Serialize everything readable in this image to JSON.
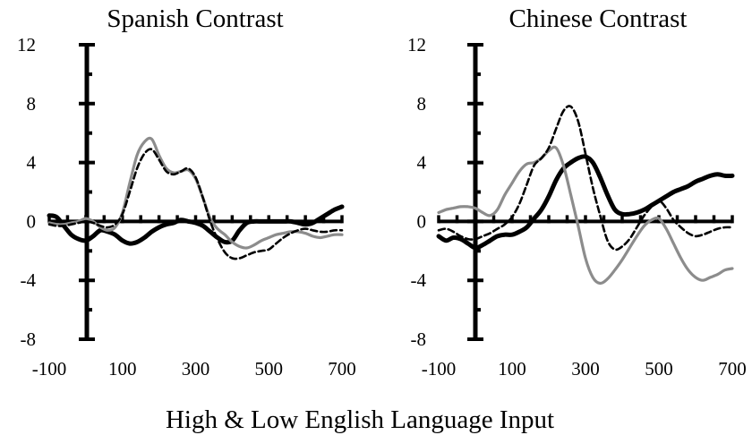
{
  "figure": {
    "xlabel": "High & Low English Language Input"
  },
  "chart_data": [
    {
      "type": "line",
      "title": "Spanish Contrast",
      "xlabel": "High & Low English Language Input",
      "ylabel": "",
      "xlim": [
        -100,
        700
      ],
      "ylim": [
        -8,
        12
      ],
      "x_ticks": [
        "-100",
        "100",
        "300",
        "500",
        "700"
      ],
      "y_ticks": [
        "12",
        "8",
        "4",
        "0",
        "-4",
        "-8"
      ],
      "grid": false,
      "legend": "none",
      "series": [
        {
          "style": "solid-black-thick",
          "color": "#000000",
          "x": [
            -100,
            -80,
            -60,
            -40,
            -20,
            0,
            20,
            40,
            60,
            80,
            100,
            120,
            140,
            160,
            180,
            200,
            220,
            240,
            260,
            280,
            300,
            320,
            340,
            360,
            380,
            400,
            420,
            440,
            460,
            480,
            500,
            520,
            540,
            560,
            580,
            600,
            620,
            640,
            660,
            680,
            700
          ],
          "y": [
            0.4,
            0.3,
            -0.3,
            -0.9,
            -1.2,
            -1.3,
            -1.0,
            -0.6,
            -0.7,
            -0.9,
            -1.3,
            -1.5,
            -1.4,
            -1.1,
            -0.7,
            -0.4,
            -0.2,
            -0.1,
            0.1,
            0.0,
            -0.1,
            -0.3,
            -0.7,
            -1.1,
            -1.4,
            -1.3,
            -0.6,
            -0.1,
            0.0,
            0.0,
            0.0,
            0.0,
            0.0,
            0.0,
            -0.1,
            -0.2,
            -0.1,
            0.2,
            0.5,
            0.8,
            1.0
          ]
        },
        {
          "style": "solid-gray",
          "color": "#8c8c8c",
          "x": [
            -100,
            -80,
            -60,
            -40,
            -20,
            0,
            20,
            40,
            60,
            80,
            100,
            120,
            140,
            160,
            180,
            200,
            220,
            240,
            260,
            280,
            300,
            320,
            340,
            360,
            380,
            400,
            420,
            440,
            460,
            480,
            500,
            520,
            540,
            560,
            580,
            600,
            620,
            640,
            660,
            680,
            700
          ],
          "y": [
            -0.1,
            -0.2,
            -0.2,
            -0.1,
            0.0,
            0.2,
            0.0,
            -0.4,
            -0.6,
            -0.4,
            0.6,
            2.6,
            4.5,
            5.4,
            5.6,
            4.5,
            3.6,
            3.3,
            3.4,
            3.5,
            2.9,
            1.6,
            0.2,
            -0.5,
            -0.9,
            -1.4,
            -1.7,
            -1.8,
            -1.6,
            -1.3,
            -1.1,
            -0.9,
            -0.8,
            -0.7,
            -0.7,
            -0.8,
            -1.0,
            -1.1,
            -1.0,
            -0.9,
            -0.9
          ]
        },
        {
          "style": "dashed-black",
          "color": "#000000",
          "x": [
            -100,
            -80,
            -60,
            -40,
            -20,
            0,
            20,
            40,
            60,
            80,
            100,
            120,
            140,
            160,
            180,
            200,
            220,
            240,
            260,
            280,
            300,
            320,
            340,
            360,
            380,
            400,
            420,
            440,
            460,
            480,
            500,
            520,
            540,
            560,
            580,
            600,
            620,
            640,
            660,
            680,
            700
          ],
          "y": [
            -0.2,
            -0.3,
            -0.3,
            -0.2,
            -0.1,
            0.0,
            -0.1,
            -0.3,
            -0.4,
            -0.2,
            0.5,
            2.0,
            3.6,
            4.6,
            4.9,
            4.2,
            3.4,
            3.2,
            3.4,
            3.6,
            3.0,
            1.6,
            0.0,
            -1.2,
            -2.1,
            -2.5,
            -2.5,
            -2.3,
            -2.1,
            -2.0,
            -1.9,
            -1.5,
            -1.1,
            -0.8,
            -0.6,
            -0.5,
            -0.6,
            -0.7,
            -0.7,
            -0.6,
            -0.6
          ]
        }
      ]
    },
    {
      "type": "line",
      "title": "Chinese Contrast",
      "xlabel": "High & Low English Language Input",
      "ylabel": "",
      "xlim": [
        -100,
        700
      ],
      "ylim": [
        -8,
        12
      ],
      "x_ticks": [
        "-100",
        "100",
        "300",
        "500",
        "700"
      ],
      "y_ticks": [
        "12",
        "8",
        "4",
        "0",
        "-4",
        "-8"
      ],
      "grid": false,
      "legend": "none",
      "series": [
        {
          "style": "solid-black-thick",
          "color": "#000000",
          "x": [
            -100,
            -80,
            -60,
            -40,
            -20,
            0,
            20,
            40,
            60,
            80,
            100,
            120,
            140,
            160,
            180,
            200,
            220,
            240,
            260,
            280,
            300,
            320,
            340,
            360,
            380,
            400,
            420,
            440,
            460,
            480,
            500,
            520,
            540,
            560,
            580,
            600,
            620,
            640,
            660,
            680,
            700
          ],
          "y": [
            -1.0,
            -1.3,
            -1.1,
            -1.2,
            -1.5,
            -1.8,
            -1.6,
            -1.3,
            -1.0,
            -0.9,
            -0.9,
            -0.7,
            -0.4,
            0.2,
            0.8,
            1.7,
            2.8,
            3.6,
            4.0,
            4.3,
            4.4,
            4.0,
            3.0,
            1.8,
            0.8,
            0.5,
            0.5,
            0.6,
            0.8,
            1.1,
            1.4,
            1.7,
            2.0,
            2.2,
            2.4,
            2.7,
            2.9,
            3.1,
            3.2,
            3.1,
            3.1
          ]
        },
        {
          "style": "solid-gray",
          "color": "#8c8c8c",
          "x": [
            -100,
            -80,
            -60,
            -40,
            -20,
            0,
            20,
            40,
            60,
            80,
            100,
            120,
            140,
            160,
            180,
            200,
            220,
            240,
            260,
            280,
            300,
            320,
            340,
            360,
            380,
            400,
            420,
            440,
            460,
            480,
            500,
            520,
            540,
            560,
            580,
            600,
            620,
            640,
            660,
            680,
            700
          ],
          "y": [
            0.6,
            0.8,
            0.9,
            1.0,
            1.0,
            0.9,
            0.6,
            0.4,
            0.8,
            1.8,
            2.6,
            3.4,
            3.9,
            4.0,
            4.3,
            4.8,
            5.0,
            3.8,
            1.8,
            -0.3,
            -2.5,
            -3.8,
            -4.2,
            -3.9,
            -3.3,
            -2.6,
            -1.8,
            -1.0,
            -0.3,
            0.1,
            0.2,
            -0.5,
            -1.5,
            -2.5,
            -3.3,
            -3.8,
            -4.0,
            -3.8,
            -3.6,
            -3.3,
            -3.2
          ]
        },
        {
          "style": "dashed-black",
          "color": "#000000",
          "x": [
            -100,
            -80,
            -60,
            -40,
            -20,
            0,
            20,
            40,
            60,
            80,
            100,
            120,
            140,
            160,
            180,
            200,
            220,
            240,
            260,
            280,
            300,
            320,
            340,
            360,
            380,
            400,
            420,
            440,
            460,
            480,
            500,
            520,
            540,
            560,
            580,
            600,
            620,
            640,
            660,
            680,
            700
          ],
          "y": [
            -0.6,
            -0.5,
            -0.7,
            -1.0,
            -1.2,
            -1.2,
            -1.0,
            -0.8,
            -0.5,
            -0.2,
            0.3,
            1.2,
            2.5,
            3.8,
            4.3,
            5.0,
            6.3,
            7.5,
            7.8,
            6.8,
            4.6,
            2.3,
            0.4,
            -1.3,
            -1.9,
            -1.7,
            -1.2,
            -0.4,
            0.4,
            1.0,
            1.4,
            0.9,
            0.1,
            -0.4,
            -0.8,
            -1.0,
            -0.9,
            -0.7,
            -0.5,
            -0.4,
            -0.4
          ]
        }
      ]
    }
  ]
}
